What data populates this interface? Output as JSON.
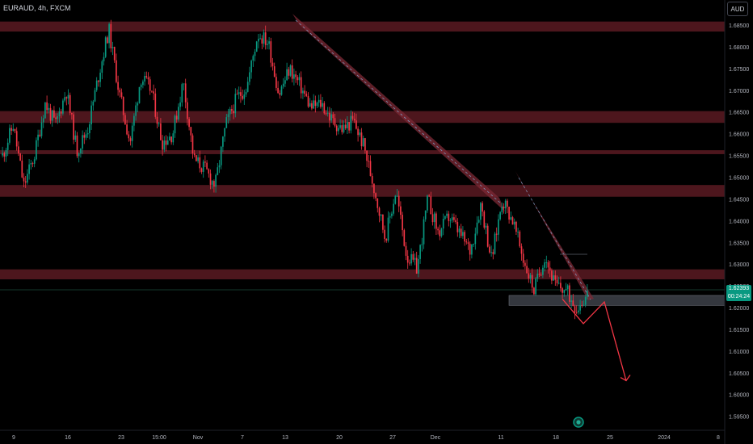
{
  "header": {
    "symbol": "EURAUD, 4h, FXCM",
    "currency_button": "AUD"
  },
  "price_axis": {
    "ticks": [
      "1.68500",
      "1.68000",
      "1.67500",
      "1.67000",
      "1.66500",
      "1.66000",
      "1.65500",
      "1.65000",
      "1.64500",
      "1.64000",
      "1.63500",
      "1.63000",
      "1.62500",
      "1.62000",
      "1.61500",
      "1.61000",
      "1.60500",
      "1.60000",
      "1.59500"
    ],
    "tick_values": [
      1.685,
      1.68,
      1.675,
      1.67,
      1.665,
      1.66,
      1.655,
      1.65,
      1.645,
      1.64,
      1.635,
      1.63,
      1.625,
      1.62,
      1.615,
      1.61,
      1.605,
      1.6,
      1.595
    ]
  },
  "time_axis": {
    "labels": [
      "9",
      "16",
      "23",
      "15:00",
      "Nov",
      "7",
      "13",
      "20",
      "27",
      "Dec",
      "11",
      "18",
      "25",
      "2024",
      "8"
    ]
  },
  "last_price": {
    "price": "1.62393",
    "countdown": "00:24:24",
    "color": "#089981"
  },
  "colors": {
    "bull": "#089981",
    "bear": "#f23645",
    "zone": "#5a1a22",
    "channel": "#7d2a35",
    "projection": "#f23645"
  },
  "chart_data": {
    "type": "candlestick",
    "symbol": "EURAUD",
    "timeframe": "4h",
    "source": "FXCM",
    "ylim": [
      1.5925,
      1.6895
    ],
    "x_labels": [
      "9",
      "16",
      "23",
      "15:00",
      "Nov",
      "7",
      "13",
      "20",
      "27",
      "Dec",
      "11",
      "18",
      "25",
      "2024",
      "8"
    ],
    "price_path": [
      1.655,
      1.662,
      1.648,
      1.655,
      1.667,
      1.662,
      1.67,
      1.656,
      1.661,
      1.673,
      1.684,
      1.669,
      1.658,
      1.673,
      1.67,
      1.658,
      1.66,
      1.672,
      1.654,
      1.652,
      1.648,
      1.662,
      1.668,
      1.671,
      1.683,
      1.681,
      1.669,
      1.675,
      1.671,
      1.666,
      1.667,
      1.663,
      1.661,
      1.663,
      1.657,
      1.647,
      1.636,
      1.647,
      1.632,
      1.629,
      1.645,
      1.637,
      1.641,
      1.637,
      1.633,
      1.644,
      1.631,
      1.645,
      1.64,
      1.631,
      1.624,
      1.632,
      1.625,
      1.624,
      1.62,
      1.623
    ],
    "resistance_zones": [
      [
        1.6835,
        1.6858
      ],
      [
        1.6625,
        1.6652
      ],
      [
        1.6553,
        1.6562
      ],
      [
        1.6455,
        1.6482
      ],
      [
        1.6265,
        1.6288
      ]
    ],
    "support_zone": [
      1.6205,
      1.6228
    ],
    "projection": [
      1.622,
      1.6163,
      1.6213,
      1.6032
    ],
    "last_price": 1.62393
  }
}
